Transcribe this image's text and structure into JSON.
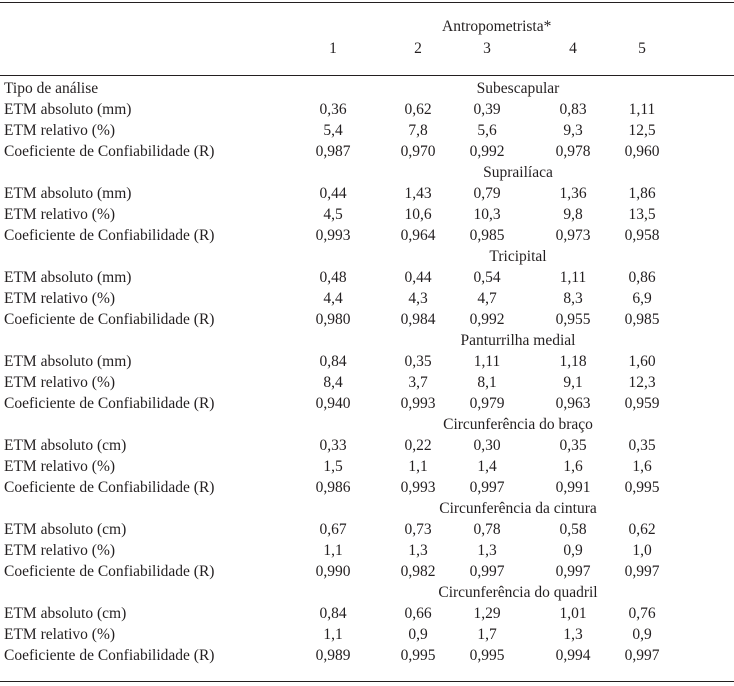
{
  "header": {
    "group_label": "Antropometrista*",
    "columns": [
      "1",
      "2",
      "3",
      "4",
      "5"
    ],
    "row_label": "Tipo de análise"
  },
  "sections": [
    {
      "title": "Subescapular",
      "rows": [
        {
          "label": "ETM absoluto (mm)",
          "values": [
            "0,36",
            "0,62",
            "0,39",
            "0,83",
            "1,11"
          ]
        },
        {
          "label": "ETM relativo (%)",
          "values": [
            "5,4",
            "7,8",
            "5,6",
            "9,3",
            "12,5"
          ]
        },
        {
          "label": "Coeficiente de Confiabilidade (R)",
          "values": [
            "0,987",
            "0,970",
            "0,992",
            "0,978",
            "0,960"
          ]
        }
      ]
    },
    {
      "title": "Suprailíaca",
      "rows": [
        {
          "label": "ETM absoluto (mm)",
          "values": [
            "0,44",
            "1,43",
            "0,79",
            "1,36",
            "1,86"
          ]
        },
        {
          "label": "ETM relativo (%)",
          "values": [
            "4,5",
            "10,6",
            "10,3",
            "9,8",
            "13,5"
          ]
        },
        {
          "label": "Coeficiente de Confiabilidade (R)",
          "values": [
            "0,993",
            "0,964",
            "0,985",
            "0,973",
            "0,958"
          ]
        }
      ]
    },
    {
      "title": "Tricipital",
      "rows": [
        {
          "label": "ETM absoluto (mm)",
          "values": [
            "0,48",
            "0,44",
            "0,54",
            "1,11",
            "0,86"
          ]
        },
        {
          "label": "ETM relativo (%)",
          "values": [
            "4,4",
            "4,3",
            "4,7",
            "8,3",
            "6,9"
          ]
        },
        {
          "label": "Coeficiente de Confiabilidade (R)",
          "values": [
            "0,980",
            "0,984",
            "0,992",
            "0,955",
            "0,985"
          ]
        }
      ]
    },
    {
      "title": "Panturrilha medial",
      "rows": [
        {
          "label": "ETM absoluto (mm)",
          "values": [
            "0,84",
            "0,35",
            "1,11",
            "1,18",
            "1,60"
          ]
        },
        {
          "label": "ETM relativo (%)",
          "values": [
            "8,4",
            "3,7",
            "8,1",
            "9,1",
            "12,3"
          ]
        },
        {
          "label": "Coeficiente de Confiabilidade (R)",
          "values": [
            "0,940",
            "0,993",
            "0,979",
            "0,963",
            "0,959"
          ]
        }
      ]
    },
    {
      "title": "Circunferência do braço",
      "rows": [
        {
          "label": "ETM absoluto (cm)",
          "values": [
            "0,33",
            "0,22",
            "0,30",
            "0,35",
            "0,35"
          ]
        },
        {
          "label": "ETM relativo (%)",
          "values": [
            "1,5",
            "1,1",
            "1,4",
            "1,6",
            "1,6"
          ]
        },
        {
          "label": "Coeficiente de Confiabilidade (R)",
          "values": [
            "0,986",
            "0,993",
            "0,997",
            "0,991",
            "0,995"
          ]
        }
      ]
    },
    {
      "title": "Circunferência da cintura",
      "rows": [
        {
          "label": "ETM absoluto (cm)",
          "values": [
            "0,67",
            "0,73",
            "0,78",
            "0,58",
            "0,62"
          ]
        },
        {
          "label": "ETM relativo (%)",
          "values": [
            "1,1",
            "1,3",
            "1,3",
            "0,9",
            "1,0"
          ]
        },
        {
          "label": "Coeficiente de Confiabilidade (R)",
          "values": [
            "0,990",
            "0,982",
            "0,997",
            "0,997",
            "0,997"
          ]
        }
      ]
    },
    {
      "title": "Circunferência do quadril",
      "rows": [
        {
          "label": "ETM absoluto (cm)",
          "values": [
            "0,84",
            "0,66",
            "1,29",
            "1,01",
            "0,76"
          ]
        },
        {
          "label": "ETM relativo (%)",
          "values": [
            "1,1",
            "0,9",
            "1,7",
            "1,3",
            "0,9"
          ]
        },
        {
          "label": "Coeficiente de Confiabilidade (R)",
          "values": [
            "0,989",
            "0,995",
            "0,995",
            "0,994",
            "0,997"
          ]
        }
      ]
    }
  ]
}
